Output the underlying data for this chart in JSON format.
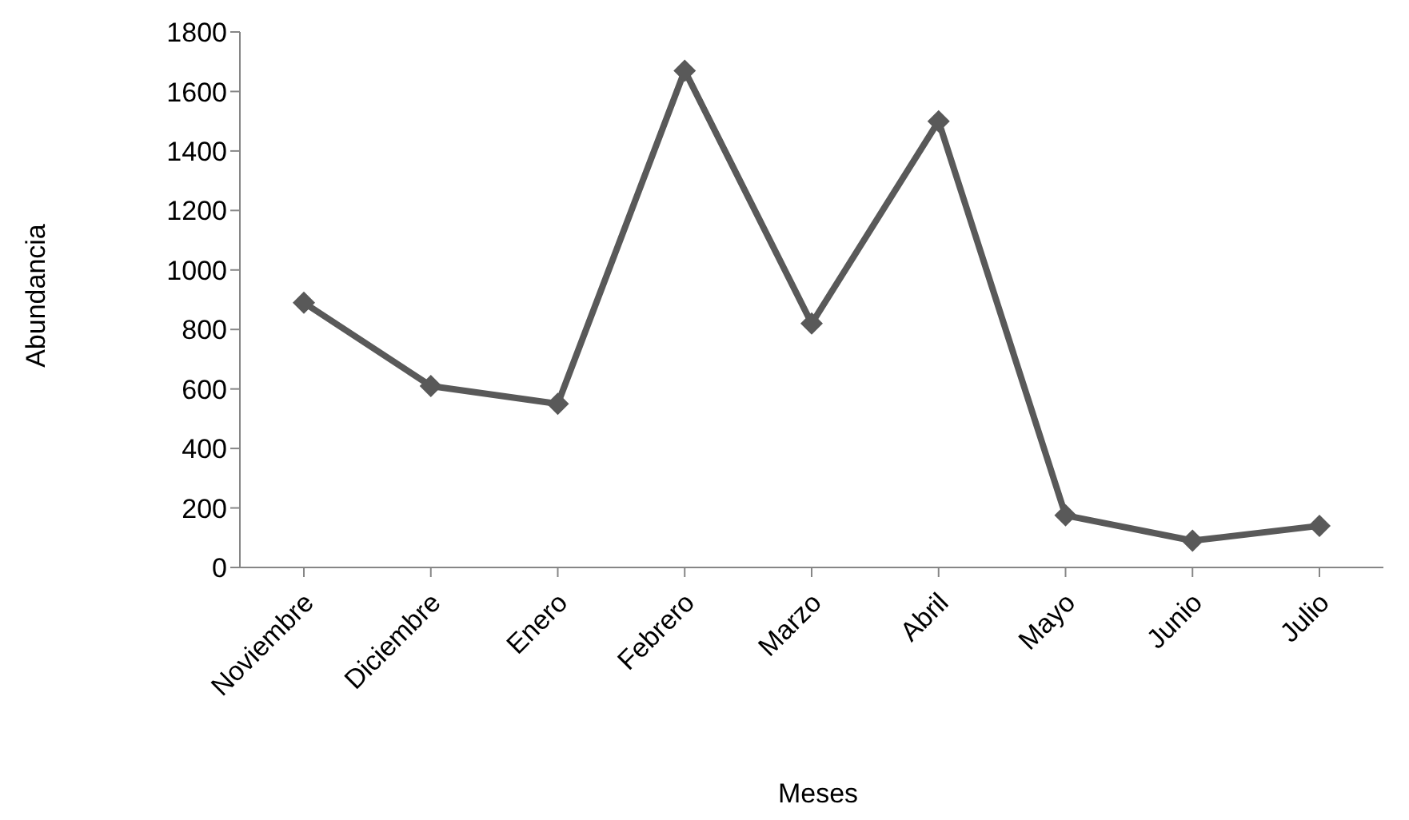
{
  "chart_data": {
    "type": "line",
    "xlabel": "Meses",
    "ylabel": "Abundancia",
    "categories": [
      "Noviembre",
      "Diciembre",
      "Enero",
      "Febrero",
      "Marzo",
      "Abril",
      "Mayo",
      "Junio",
      "Julio"
    ],
    "series": [
      {
        "color": "#595959",
        "values": [
          890,
          610,
          550,
          1670,
          820,
          1500,
          175,
          90,
          140
        ]
      }
    ],
    "ylim": [
      0,
      1800
    ],
    "yticks": [
      0,
      200,
      400,
      600,
      800,
      1000,
      1200,
      1400,
      1600,
      1800
    ],
    "grid": false,
    "legend": false,
    "marker": "diamond",
    "line_style": "solid"
  }
}
